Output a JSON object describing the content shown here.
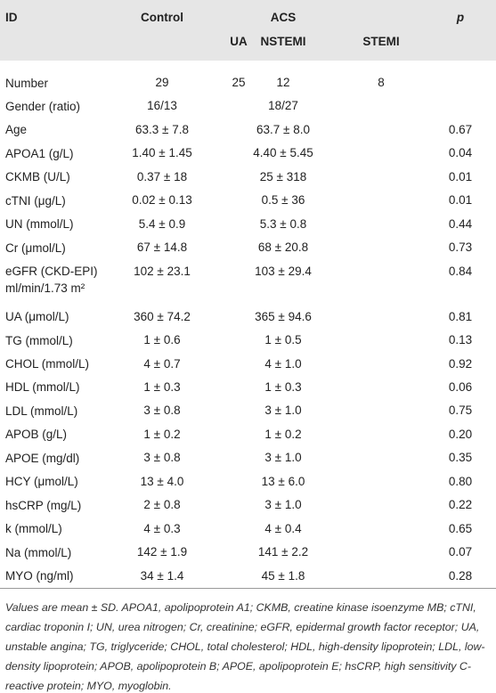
{
  "header": {
    "id": "ID",
    "control": "Control",
    "acs": "ACS",
    "p": "p",
    "ua": "UA",
    "nstemi": "NSTEMI",
    "stemi": "STEMI"
  },
  "rows": [
    {
      "label": "Number",
      "control": "29",
      "ua": "25",
      "nstemi": "12",
      "stemi": "8"
    },
    {
      "label": "Gender (ratio)",
      "control": "16/13",
      "acs": "18/27"
    },
    {
      "label": "Age",
      "control": "63.3 ± 7.8",
      "acs": "63.7 ± 8.0",
      "p": "0.67"
    },
    {
      "label": "APOA1 (g/L)",
      "control": "1.40 ± 1.45",
      "acs": "4.40 ± 5.45",
      "p": "0.04"
    },
    {
      "label": "CKMB (U/L)",
      "control": "0.37 ± 18",
      "acs": "25 ± 318",
      "p": "0.01"
    },
    {
      "label": "cTNI (μg/L)",
      "control": "0.02 ± 0.13",
      "acs": "0.5 ± 36",
      "p": "0.01"
    },
    {
      "label": "UN (mmol/L)",
      "control": "5.4 ± 0.9",
      "acs": "5.3 ± 0.8",
      "p": "0.44"
    },
    {
      "label": "Cr (μmol/L)",
      "control": "67 ± 14.8",
      "acs": "68 ± 20.8",
      "p": "0.73"
    },
    {
      "label": "eGFR (CKD-EPI) ml/min/1.73 m²",
      "control": "102 ± 23.1",
      "acs": "103 ± 29.4",
      "p": "0.84"
    },
    {
      "label": "UA (μmol/L)",
      "control": "360 ± 74.2",
      "acs": "365 ± 94.6",
      "p": "0.81"
    },
    {
      "label": "TG (mmol/L)",
      "control": "1 ± 0.6",
      "acs": "1 ± 0.5",
      "p": "0.13"
    },
    {
      "label": "CHOL (mmol/L)",
      "control": "4 ± 0.7",
      "acs": "4 ± 1.0",
      "p": "0.92"
    },
    {
      "label": "HDL (mmol/L)",
      "control": "1 ± 0.3",
      "acs": "1 ± 0.3",
      "p": "0.06"
    },
    {
      "label": "LDL (mmol/L)",
      "control": "3 ± 0.8",
      "acs": "3 ± 1.0",
      "p": "0.75"
    },
    {
      "label": "APOB (g/L)",
      "control": "1 ± 0.2",
      "acs": "1 ± 0.2",
      "p": "0.20"
    },
    {
      "label": "APOE (mg/dl)",
      "control": "3 ± 0.8",
      "acs": "3 ± 1.0",
      "p": "0.35"
    },
    {
      "label": "HCY (μmol/L)",
      "control": "13 ± 4.0",
      "acs": "13 ± 6.0",
      "p": "0.80"
    },
    {
      "label": "hsCRP (mg/L)",
      "control": "2 ± 0.8",
      "acs": "3 ± 1.0",
      "p": "0.22"
    },
    {
      "label": "k (mmol/L)",
      "control": "4 ± 0.3",
      "acs": "4 ± 0.4",
      "p": "0.65"
    },
    {
      "label": "Na (mmol/L)",
      "control": "142 ± 1.9",
      "acs": "141 ± 2.2",
      "p": "0.07"
    },
    {
      "label": "MYO (ng/ml)",
      "control": "34 ± 1.4",
      "acs": "45 ± 1.8",
      "p": "0.28"
    }
  ],
  "footnote": "Values are mean ± SD. APOA1, apolipoprotein A1; CKMB, creatine kinase isoenzyme MB; cTNI, cardiac troponin I; UN, urea nitrogen; Cr, creatinine; eGFR, epidermal growth factor receptor; UA, unstable angina; TG, triglyceride; CHOL, total cholesterol; HDL, high-density lipoprotein; LDL, low-density lipoprotein; APOB, apolipoprotein B; APOE, apolipoprotein E; hsCRP, high sensitivity C-reactive protein; MYO, myoglobin."
}
